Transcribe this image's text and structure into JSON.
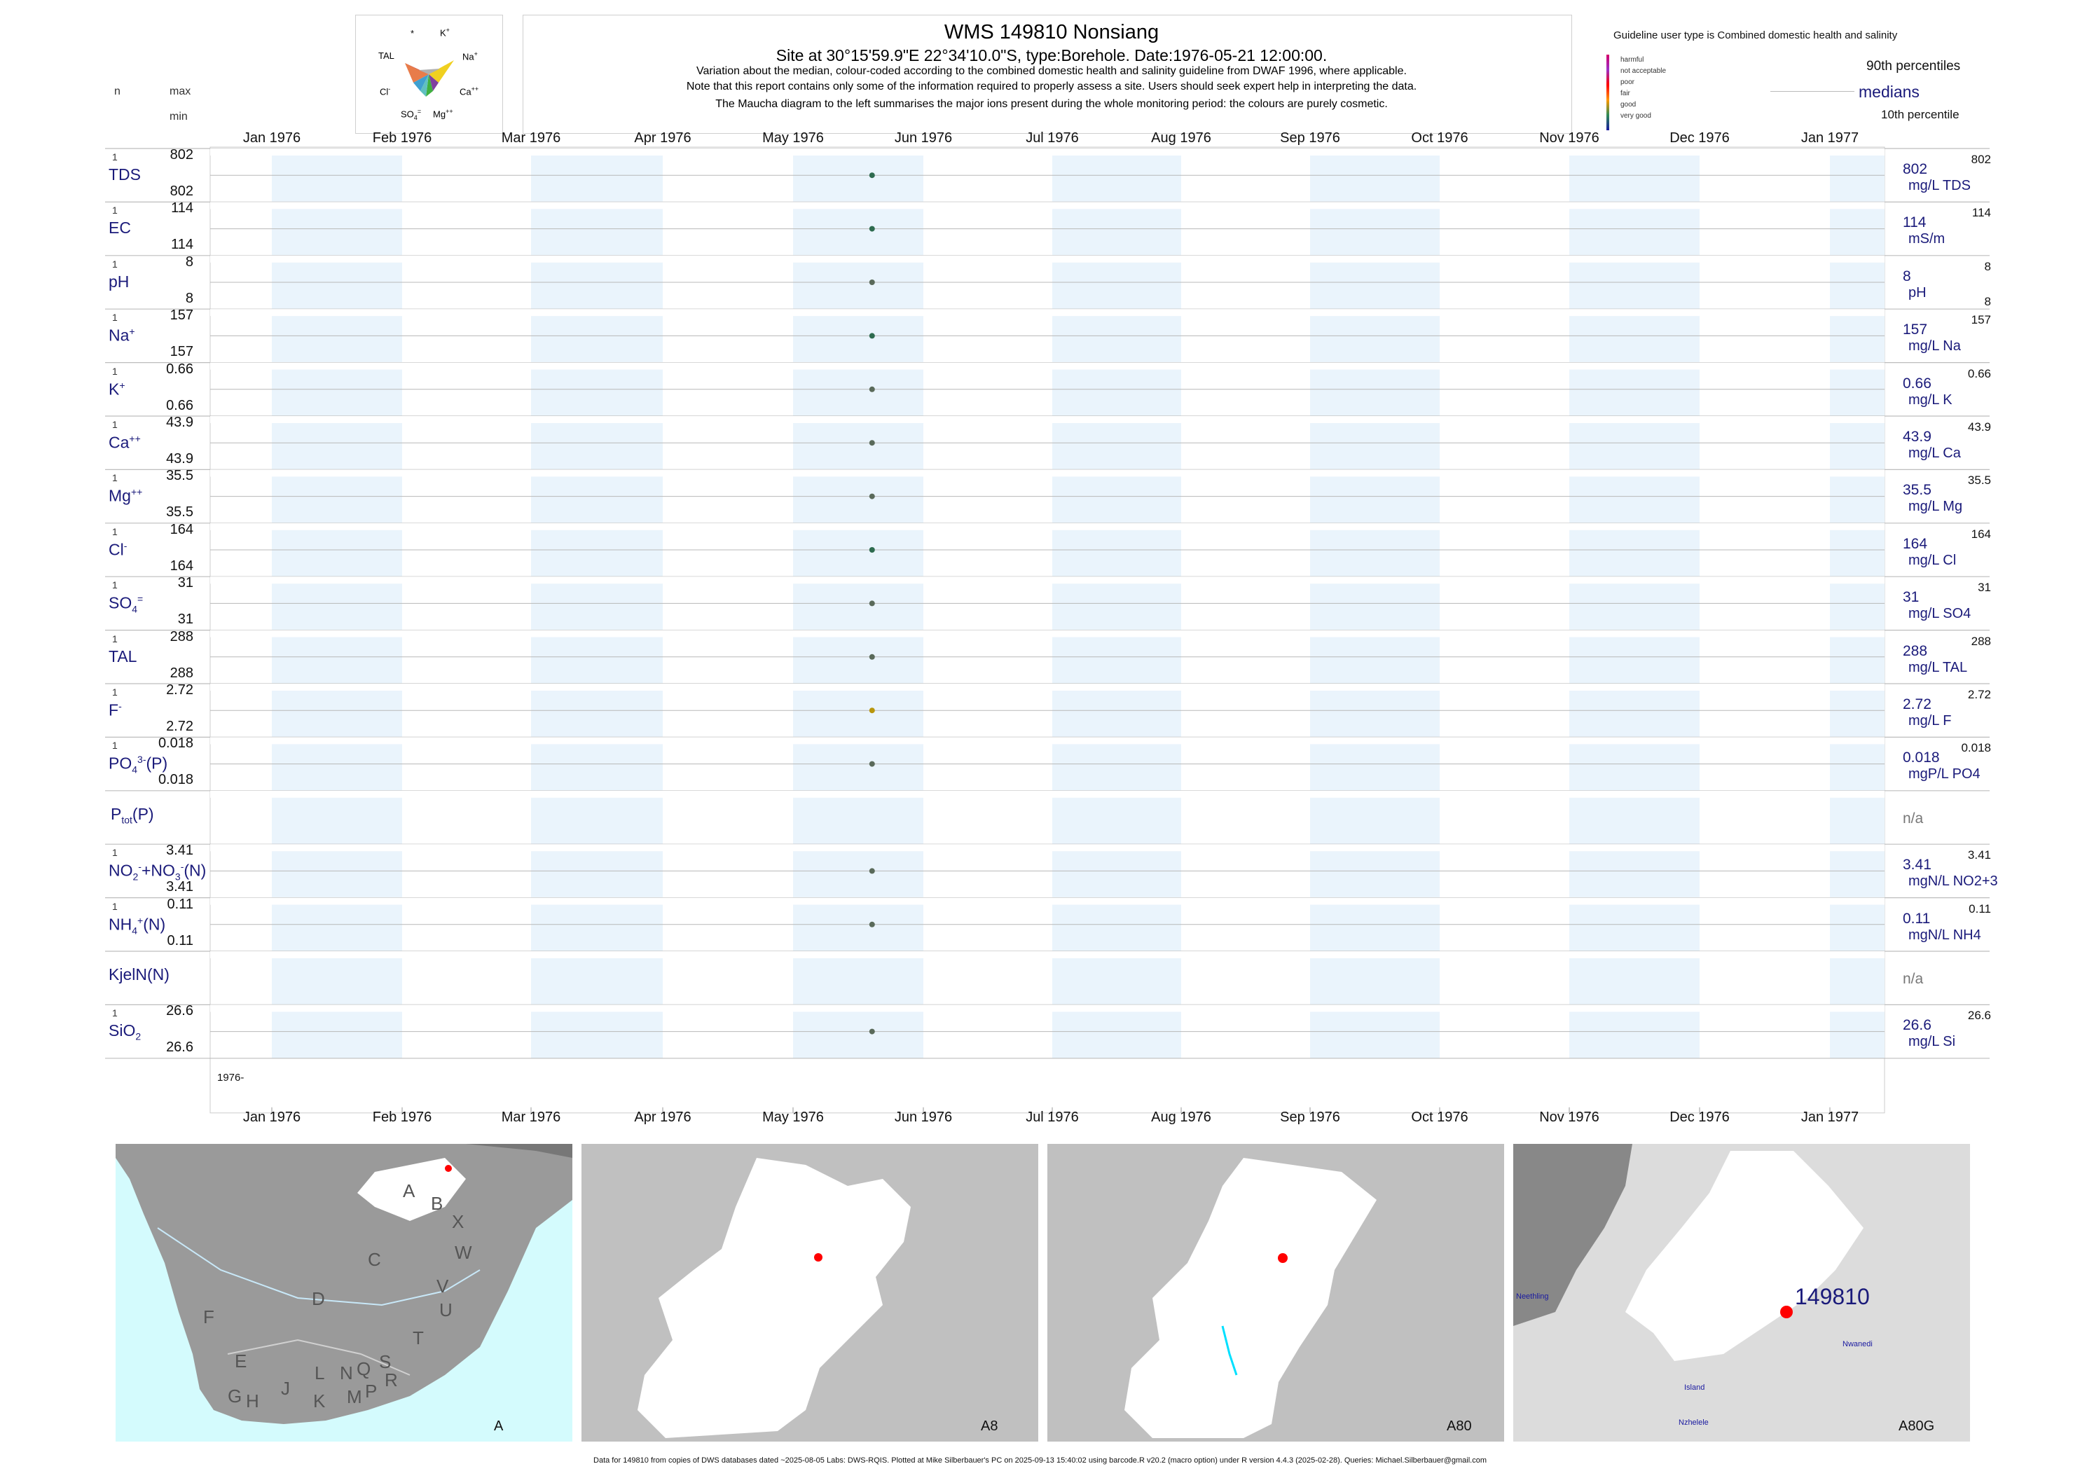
{
  "header": {
    "title": "WMS 149810  Nonsiang",
    "subtitle": "Site at 30°15'59.9\"E 22°34'10.0\"S, type:Borehole. Date:1976-05-21 12:00:00.",
    "line1": "Variation about the median,  colour-coded according to the combined domestic health and salinity guideline from DWAF 1996, where applicable.",
    "line2": "Note that this report contains only some of the information required to properly assess a site. Users should seek expert help in interpreting the data.",
    "line3": "The Maucha diagram to the left summarises the major ions present during the whole monitoring period: the colours are purely cosmetic."
  },
  "col_headers": {
    "n": "n",
    "max": "max",
    "min": "min"
  },
  "maucha": {
    "star": "*",
    "k": "K",
    "na": "Na",
    "ca": "Ca",
    "mg": "Mg",
    "so4": "SO",
    "cl": "Cl",
    "tal": "TAL"
  },
  "legend": {
    "guideline_title": "Guideline user type is Combined domestic health and salinity",
    "categories": [
      "harmful",
      "not acceptable",
      "poor",
      "fair",
      "good",
      "very good"
    ],
    "category_colors": [
      "#d4006a",
      "#9b30c8",
      "#ff0000",
      "#ff9900",
      "#2e8b57",
      "#1a1aa0"
    ],
    "p90": "90th percentiles",
    "medians": "medians",
    "p10": "10th percentile"
  },
  "months_top": [
    "Jan 1976",
    "Feb 1976",
    "Mar 1976",
    "Apr 1976",
    "May 1976",
    "Jun 1976",
    "Jul 1976",
    "Aug 1976",
    "Sep 1976",
    "Oct 1976",
    "Nov 1976",
    "Dec 1976",
    "Jan 1977"
  ],
  "months_bottom": [
    "Jan 1976",
    "Feb 1976",
    "Mar 1976",
    "Apr 1976",
    "May 1976",
    "Jun 1976",
    "Jul 1976",
    "Aug 1976",
    "Sep 1976",
    "Oct 1976",
    "Nov 1976",
    "Dec 1976",
    "Jan 1977"
  ],
  "chart_data": {
    "type": "scatter",
    "x_range": [
      "1976-01-01",
      "1977-01-15"
    ],
    "sample_date": "1976-05-21",
    "x_axis_note": "1976-",
    "rows": [
      {
        "label": "TDS",
        "n": "1",
        "max": "802",
        "min": "802",
        "median": "802",
        "unit": "mg/L TDS",
        "rmax": "802",
        "rmin": "",
        "value": 802,
        "color": "#2e6b4f"
      },
      {
        "label": "EC",
        "n": "1",
        "max": "114",
        "min": "114",
        "median": "114",
        "unit": "mS/m",
        "rmax": "114",
        "rmin": "",
        "value": 114,
        "color": "#2e6b4f"
      },
      {
        "label": "pH",
        "n": "1",
        "max": "8",
        "min": "8",
        "median": "8",
        "unit": "pH",
        "rmax": "8",
        "rmin": "8",
        "value": 8,
        "color": "#5a6a5a"
      },
      {
        "label": "Na",
        "n": "1",
        "max": "157",
        "min": "157",
        "median": "157",
        "unit": "mg/L Na",
        "rmax": "157",
        "rmin": "",
        "value": 157,
        "color": "#2e6b4f"
      },
      {
        "label": "K",
        "n": "1",
        "max": "0.66",
        "min": "0.66",
        "median": "0.66",
        "unit": "mg/L K",
        "rmax": "0.66",
        "rmin": "",
        "value": 0.66,
        "color": "#5a6a5a"
      },
      {
        "label": "Ca",
        "n": "1",
        "max": "43.9",
        "min": "43.9",
        "median": "43.9",
        "unit": "mg/L Ca",
        "rmax": "43.9",
        "rmin": "",
        "value": 43.9,
        "color": "#5a6a5a"
      },
      {
        "label": "Mg",
        "n": "1",
        "max": "35.5",
        "min": "35.5",
        "median": "35.5",
        "unit": "mg/L Mg",
        "rmax": "35.5",
        "rmin": "",
        "value": 35.5,
        "color": "#5a6a5a"
      },
      {
        "label": "Cl",
        "n": "1",
        "max": "164",
        "min": "164",
        "median": "164",
        "unit": "mg/L Cl",
        "rmax": "164",
        "rmin": "",
        "value": 164,
        "color": "#2e6b4f"
      },
      {
        "label": "SO",
        "n": "1",
        "max": "31",
        "min": "31",
        "median": "31",
        "unit": "mg/L SO4",
        "rmax": "31",
        "rmin": "",
        "value": 31,
        "color": "#5a6a5a"
      },
      {
        "label": "TAL",
        "n": "1",
        "max": "288",
        "min": "288",
        "median": "288",
        "unit": "mg/L TAL",
        "rmax": "288",
        "rmin": "",
        "value": 288,
        "color": "#5a6a5a"
      },
      {
        "label": "F",
        "n": "1",
        "max": "2.72",
        "min": "2.72",
        "median": "2.72",
        "unit": "mg/L F",
        "rmax": "2.72",
        "rmin": "",
        "value": 2.72,
        "color": "#b8960c"
      },
      {
        "label": "PO",
        "n": "1",
        "max": "0.018",
        "min": "0.018",
        "median": "0.018",
        "unit": "mgP/L PO4",
        "rmax": "0.018",
        "rmin": "",
        "value": 0.018,
        "color": "#5a6a5a"
      },
      {
        "label": "P",
        "n": "",
        "max": "",
        "min": "",
        "median": "n/a",
        "unit": "",
        "rmax": "",
        "rmin": "",
        "value": null,
        "color": "#5a6a5a"
      },
      {
        "label": "NO",
        "n": "1",
        "max": "3.41",
        "min": "3.41",
        "median": "3.41",
        "unit": "mgN/L NO2+3",
        "rmax": "3.41",
        "rmin": "",
        "value": 3.41,
        "color": "#5a6a5a"
      },
      {
        "label": "NH",
        "n": "1",
        "max": "0.11",
        "min": "0.11",
        "median": "0.11",
        "unit": "mgN/L NH4",
        "rmax": "0.11",
        "rmin": "",
        "value": 0.11,
        "color": "#5a6a5a"
      },
      {
        "label": "KjelN(N)",
        "n": "",
        "max": "",
        "min": "",
        "median": "n/a",
        "unit": "",
        "rmax": "",
        "rmin": "",
        "value": null,
        "color": "#5a6a5a"
      },
      {
        "label": "SiO",
        "n": "1",
        "max": "26.6",
        "min": "26.6",
        "median": "26.6",
        "unit": "mg/L Si",
        "rmax": "26.6",
        "rmin": "",
        "value": 26.6,
        "color": "#5a6a5a"
      }
    ]
  },
  "maps": {
    "m1_label": "A",
    "m2_label": "A8",
    "m3_label": "A80",
    "m4_label": "A80G",
    "regions": [
      "A",
      "B",
      "X",
      "W",
      "C",
      "D",
      "V",
      "U",
      "T",
      "F",
      "E",
      "G",
      "H",
      "J",
      "K",
      "L",
      "M",
      "N",
      "P",
      "Q",
      "R",
      "S"
    ],
    "site_label": "149810",
    "place1": "Neethling",
    "place2": "Nwanedi",
    "place3": "Island",
    "place4": "Nzhelele"
  },
  "footer": "Data for 149810 from copies of DWS databases dated ~2025-08-05 Labs: DWS-RQIS. Plotted at Mike Silberbauer's PC on 2025-09-13 15:40:02 using barcode.R v20.2 (macro option) under R version 4.4.3 (2025-02-28). Queries: Michael.Silberbauer@gmail.com"
}
